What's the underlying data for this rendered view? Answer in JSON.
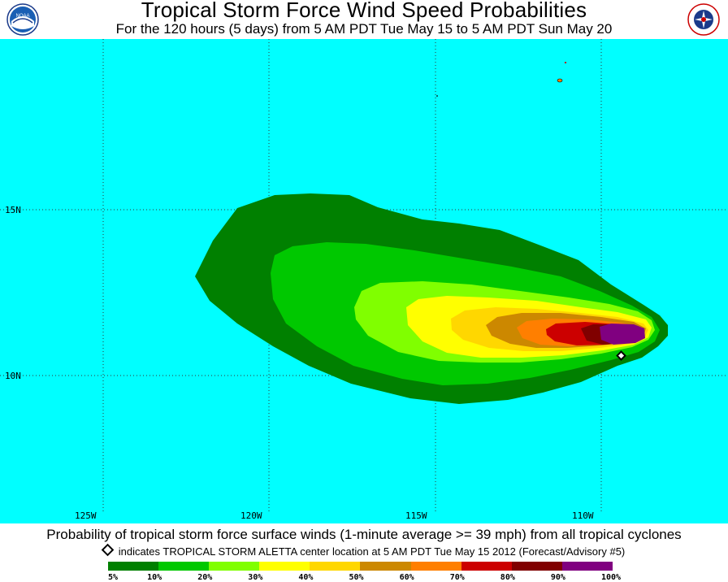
{
  "header": {
    "title": "Tropical Storm Force Wind Speed Probabilities",
    "subtitle": "For the 120 hours (5 days) from 5 AM PDT Tue May 15 to 5 AM PDT Sun May 20",
    "left_logo_text": "NOAA",
    "right_logo_text": "NATIONAL WEATHER SERVICE"
  },
  "map": {
    "ocean_color": "#00FFFF",
    "lat_labels": [
      "15N",
      "10N"
    ],
    "lon_labels": [
      "125W",
      "120W",
      "115W",
      "110W"
    ],
    "storm_marker": "TROPICAL STORM ALETTA center location"
  },
  "footer": {
    "caption": "Probability of tropical storm force surface winds (1-minute average >= 39 mph) from all tropical cyclones",
    "note": "indicates TROPICAL STORM ALETTA center location at 5 AM PDT Tue May 15 2012 (Forecast/Advisory #5)"
  },
  "legend": {
    "colors": [
      "#008000",
      "#00C800",
      "#80FF00",
      "#FFFF00",
      "#FFD700",
      "#CC8800",
      "#FF7F00",
      "#CC0000",
      "#800000",
      "#800080"
    ],
    "labels": [
      "5%",
      "10%",
      "20%",
      "30%",
      "40%",
      "50%",
      "60%",
      "70%",
      "80%",
      "90%",
      "100%"
    ]
  }
}
